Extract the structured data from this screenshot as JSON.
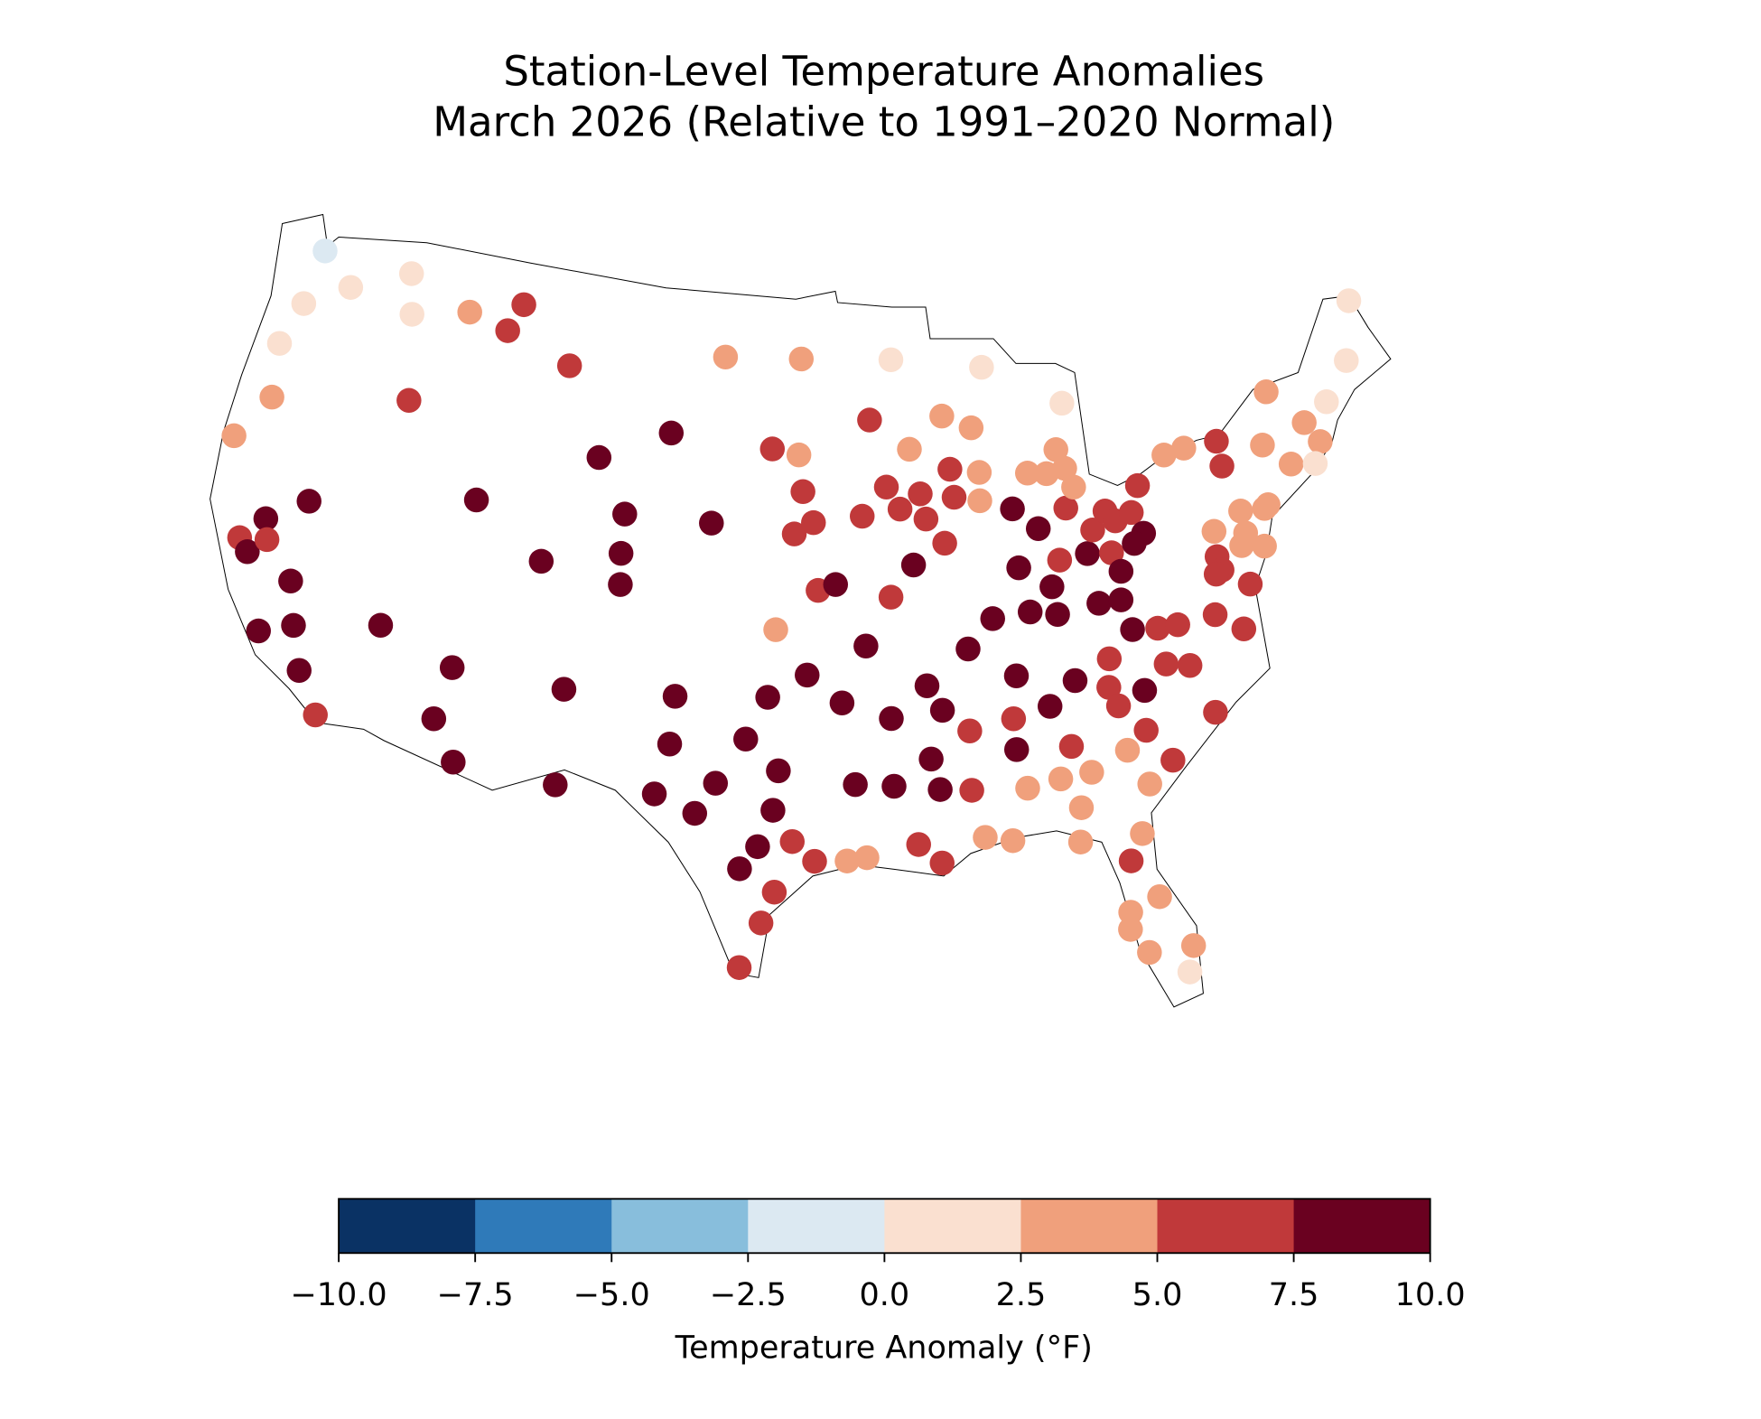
{
  "chart_data": {
    "type": "map",
    "title": "Station-Level Temperature Anomalies",
    "subtitle": "March 2026 (Relative to 1991–2020 Normal)",
    "lon": [
      -121.7,
      -119.9,
      -122.0,
      -117.0,
      -116.5,
      -122.6,
      -122.2,
      -123.4,
      -113.6,
      -110.9,
      -111.5,
      -108.1,
      -115.7,
      -119.2,
      -120.9,
      -121.8,
      -121.3,
      -120.6,
      -119.1,
      -119.9,
      -118.5,
      -117.8,
      -116.7,
      -114.8,
      -111.6,
      -106.1,
      -102.7,
      -104.6,
      -108.2,
      -104.6,
      -104.5,
      -100.5,
      -111.4,
      -111.8,
      -110.7,
      -106.5,
      -106.4,
      -100.2,
      -96.3,
      -91.7,
      -92.9,
      -97.7,
      -96.4,
      -96.2,
      -96.6,
      -95.7,
      -95.5,
      -94.7,
      -93.4,
      -92.2,
      -97.4,
      -93.4,
      -91.0,
      -89.3,
      -87.9,
      -87.1,
      -83.3,
      -92.2,
      -91.6,
      -90.6,
      -89.1,
      -89.0,
      -87.7,
      -87.8,
      -90.4,
      -89.6,
      -91.1,
      -86.3,
      -85.2,
      -86.3,
      -87.7,
      -88.9,
      -86.0,
      -84.8,
      -84.9,
      -84.4,
      -83.1,
      -82.0,
      -81.7,
      -82.9,
      -81.9,
      -81.6,
      -83.8,
      -82.7,
      -82.0,
      -81.6,
      -80.8,
      -80.4,
      -80.9,
      -80.3,
      -83.3,
      -85.4,
      -84.5,
      -83.9,
      -83.6,
      -78.8,
      -77.8,
      -76.2,
      -76.2,
      -73.3,
      -74.1,
      -73.0,
      -71.9,
      -70.6,
      -68.1,
      -69.1,
      -71.4,
      -71.9,
      -75.8,
      -75.8,
      -74.5,
      -74.7,
      -77.2,
      -77.3,
      -77.2,
      -77.5,
      -76.1,
      -75.1,
      -76.1,
      -77.9,
      -76.8,
      -80.5,
      -79.6,
      -80.4,
      -79.4,
      -81.5,
      -78.7,
      -82.8,
      -83.0,
      -82.7,
      -84.4,
      -85.6,
      -86.9,
      -81.7,
      -82.6,
      -80.8,
      -81.9,
      -84.9,
      -84.2,
      -85.5,
      -86.9,
      -87.2,
      -87.2,
      -84.8,
      -85.0,
      -82.5,
      -83.1,
      -82.2,
      -83.4,
      -83.5,
      -82.9,
      -81.2,
      -81.5,
      -87.7,
      -88.8,
      -89.1,
      -89.2,
      -90.5,
      -90.8,
      -90.2,
      -90.8,
      -92.4,
      -92.4,
      -94.0,
      -91.5,
      -90.6,
      -93.6,
      -94.4,
      -94.5,
      -96.0,
      -97.7,
      -98.6,
      -97.2,
      -97.4,
      -96.6,
      -95.7,
      -98.0,
      -98.7,
      -97.3,
      -97.8,
      -98.6,
      -101.7,
      -101.8,
      -99.8,
      -102.3,
      -100.6
    ],
    "lat": [
      48.4,
      47.4,
      46.4,
      48.4,
      47.0,
      44.8,
      42.9,
      41.2,
      47.5,
      48.1,
      47.1,
      46.2,
      44.0,
      39.7,
      38.7,
      37.8,
      37.4,
      38.0,
      36.8,
      34.8,
      35.3,
      33.8,
      32.4,
      36.0,
      41.0,
      43.1,
      44.2,
      41.2,
      39.2,
      39.8,
      38.7,
      41.1,
      35.0,
      33.1,
      31.7,
      34.8,
      31.4,
      47.0,
      47.0,
      46.9,
      44.8,
      43.8,
      43.6,
      42.3,
      40.8,
      41.2,
      38.8,
      39.0,
      41.4,
      38.5,
      37.4,
      36.8,
      43.7,
      44.8,
      44.3,
      46.4,
      44.8,
      42.4,
      41.6,
      42.1,
      42.9,
      41.9,
      42.7,
      41.7,
      41.2,
      40.3,
      39.6,
      41.3,
      40.5,
      39.2,
      37.5,
      36.5,
      37.6,
      37.4,
      38.4,
      39.3,
      39.4,
      39.3,
      38.6,
      37.6,
      37.6,
      36.5,
      41.1,
      40.2,
      40.8,
      40.4,
      40.6,
      39.8,
      39.5,
      41.5,
      41.8,
      42.5,
      42.4,
      43.2,
      42.5,
      42.4,
      42.5,
      42.5,
      41.6,
      43.8,
      42.0,
      41.1,
      42.4,
      42.9,
      46.1,
      44.1,
      41.6,
      40.9,
      39.1,
      39.9,
      39.9,
      39.8,
      39.4,
      38.5,
      38.0,
      37.9,
      38.7,
      38.5,
      37.3,
      36.5,
      35.8,
      36.4,
      36.4,
      35.1,
      34.9,
      34.3,
      33.1,
      35.6,
      34.6,
      33.9,
      35.0,
      34.2,
      35.4,
      32.9,
      32.3,
      31.7,
      31.0,
      32.7,
      31.7,
      31.6,
      31.4,
      32.8,
      33.9,
      30.5,
      29.3,
      29.3,
      28.4,
      27.0,
      26.6,
      26.0,
      25.1,
      25.1,
      24.2,
      29.6,
      29.8,
      33.6,
      31.5,
      31.6,
      32.7,
      34.4,
      35.3,
      34.2,
      31.8,
      31.9,
      29.7,
      29.0,
      29.3,
      29.2,
      34.8,
      35.8,
      35.0,
      33.5,
      32.4,
      31.0,
      29.9,
      29.2,
      29.7,
      28.9,
      28.1,
      27.0,
      25.4,
      34.9,
      33.2,
      31.9,
      31.4,
      30.8
    ],
    "values": [
      -0.8,
      1.3,
      1.3,
      1.3,
      1.3,
      1.3,
      3.7,
      3.7,
      3.7,
      6.2,
      6.2,
      6.2,
      6.2,
      8.7,
      8.7,
      6.2,
      8.7,
      6.2,
      8.7,
      8.7,
      8.7,
      8.7,
      6.2,
      8.7,
      8.7,
      8.7,
      8.7,
      8.7,
      8.7,
      8.7,
      8.7,
      8.7,
      8.7,
      8.7,
      8.7,
      8.7,
      8.7,
      3.7,
      3.7,
      1.3,
      6.2,
      6.2,
      3.7,
      6.2,
      6.2,
      6.2,
      6.2,
      8.7,
      6.2,
      6.2,
      3.7,
      8.7,
      3.7,
      3.7,
      3.7,
      1.3,
      1.3,
      6.2,
      6.2,
      6.2,
      6.2,
      6.2,
      3.7,
      3.7,
      6.2,
      6.2,
      8.7,
      8.7,
      8.7,
      8.7,
      8.7,
      8.7,
      8.7,
      8.7,
      8.7,
      6.2,
      8.7,
      6.2,
      8.7,
      8.7,
      8.7,
      8.7,
      6.2,
      6.2,
      6.2,
      6.2,
      6.2,
      8.7,
      8.7,
      6.2,
      3.7,
      3.7,
      3.7,
      3.7,
      3.7,
      3.7,
      3.7,
      6.2,
      6.2,
      3.7,
      3.7,
      3.7,
      3.7,
      1.3,
      1.3,
      1.3,
      3.7,
      1.3,
      3.7,
      3.7,
      3.7,
      3.7,
      3.7,
      6.2,
      6.2,
      6.2,
      3.7,
      3.7,
      6.2,
      6.2,
      6.2,
      6.2,
      6.2,
      6.2,
      6.2,
      8.7,
      6.2,
      6.2,
      6.2,
      6.2,
      8.7,
      8.7,
      8.7,
      6.2,
      3.7,
      6.2,
      3.7,
      6.2,
      3.7,
      3.7,
      3.7,
      8.7,
      6.2,
      3.7,
      3.7,
      3.7,
      6.2,
      3.7,
      3.7,
      3.7,
      3.7,
      3.7,
      1.3,
      3.7,
      3.7,
      6.2,
      6.2,
      8.7,
      8.7,
      8.7,
      8.7,
      8.7,
      8.7,
      8.7,
      6.2,
      6.2,
      3.7,
      3.7,
      8.7,
      8.7,
      8.7,
      8.7,
      8.7,
      8.7,
      6.2,
      6.2,
      8.7,
      8.7,
      6.2,
      6.2,
      6.2,
      8.7,
      8.7,
      8.7,
      8.7,
      8.7
    ],
    "colorbar": {
      "label": "Temperature Anomaly (°F)",
      "lim": [
        -10,
        10
      ],
      "colors": [
        "#0a3264",
        "#2f7ab9",
        "#88bedc",
        "#dce9f2",
        "#fae0d0",
        "#f0a07c",
        "#c0393a",
        "#6a0120"
      ],
      "ticks": [
        {
          "value": -10,
          "label": "−10.0"
        },
        {
          "value": -7.5,
          "label": "−7.5"
        },
        {
          "value": -5,
          "label": "−5.0"
        },
        {
          "value": -2.5,
          "label": "−2.5"
        },
        {
          "value": 0,
          "label": "0.0"
        },
        {
          "value": 2.5,
          "label": "2.5"
        },
        {
          "value": 5,
          "label": "5.0"
        },
        {
          "value": 7.5,
          "label": "7.5"
        },
        {
          "value": 10,
          "label": "10.0"
        }
      ]
    }
  }
}
